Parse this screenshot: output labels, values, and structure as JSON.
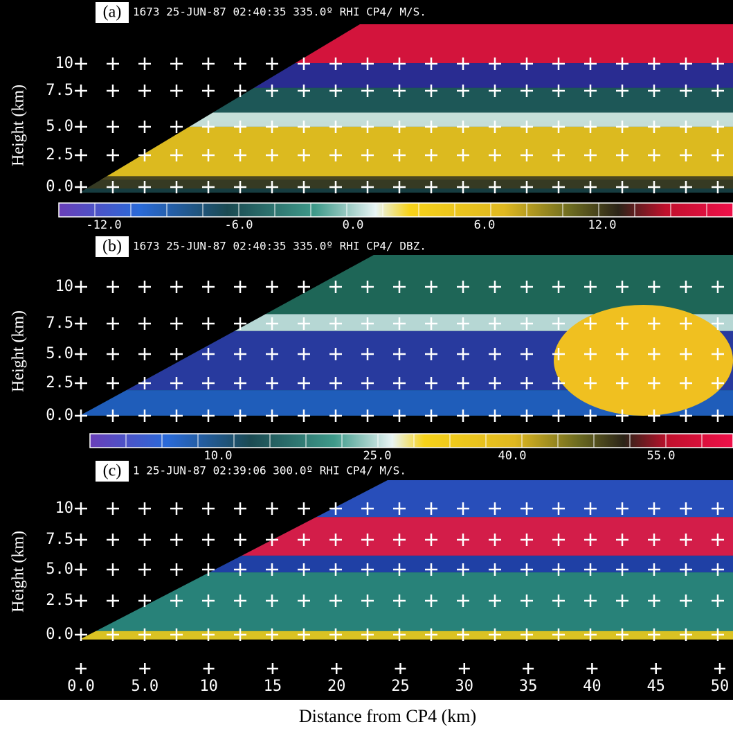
{
  "panels": [
    {
      "label": "(a)",
      "header": "1673 25-JUN-87 02:40:35 335.0º RHI CP4/ M/S.",
      "y_axis_label": "Height (km)",
      "y_ticks": [
        "10",
        "7.5",
        "5.0",
        "2.5",
        "0.0"
      ],
      "colorbar_labels": [
        "-12.0",
        "-6.0",
        "0.0",
        "6.0",
        "12.0"
      ]
    },
    {
      "label": "(b)",
      "header": "1673 25-JUN-87 02:40:35 335.0º RHI CP4/ DBZ.",
      "y_axis_label": "Height (km)",
      "y_ticks": [
        "10",
        "7.5",
        "5.0",
        "2.5",
        "0.0"
      ],
      "colorbar_labels": [
        "10.0",
        "25.0",
        "40.0",
        "55.0"
      ]
    },
    {
      "label": "(c)",
      "header": "1 25-JUN-87 02:39:06 300.0º RHI CP4/ M/S.",
      "y_axis_label": "Height (km)",
      "y_ticks": [
        "10",
        "7.5",
        "5.0",
        "2.5",
        "0.0"
      ]
    }
  ],
  "x_ticks": [
    "0.0",
    "5.0",
    "10",
    "15",
    "20",
    "25",
    "30",
    "35",
    "40",
    "45",
    "50"
  ],
  "x_axis_label": "Distance from CP4 (km)"
}
